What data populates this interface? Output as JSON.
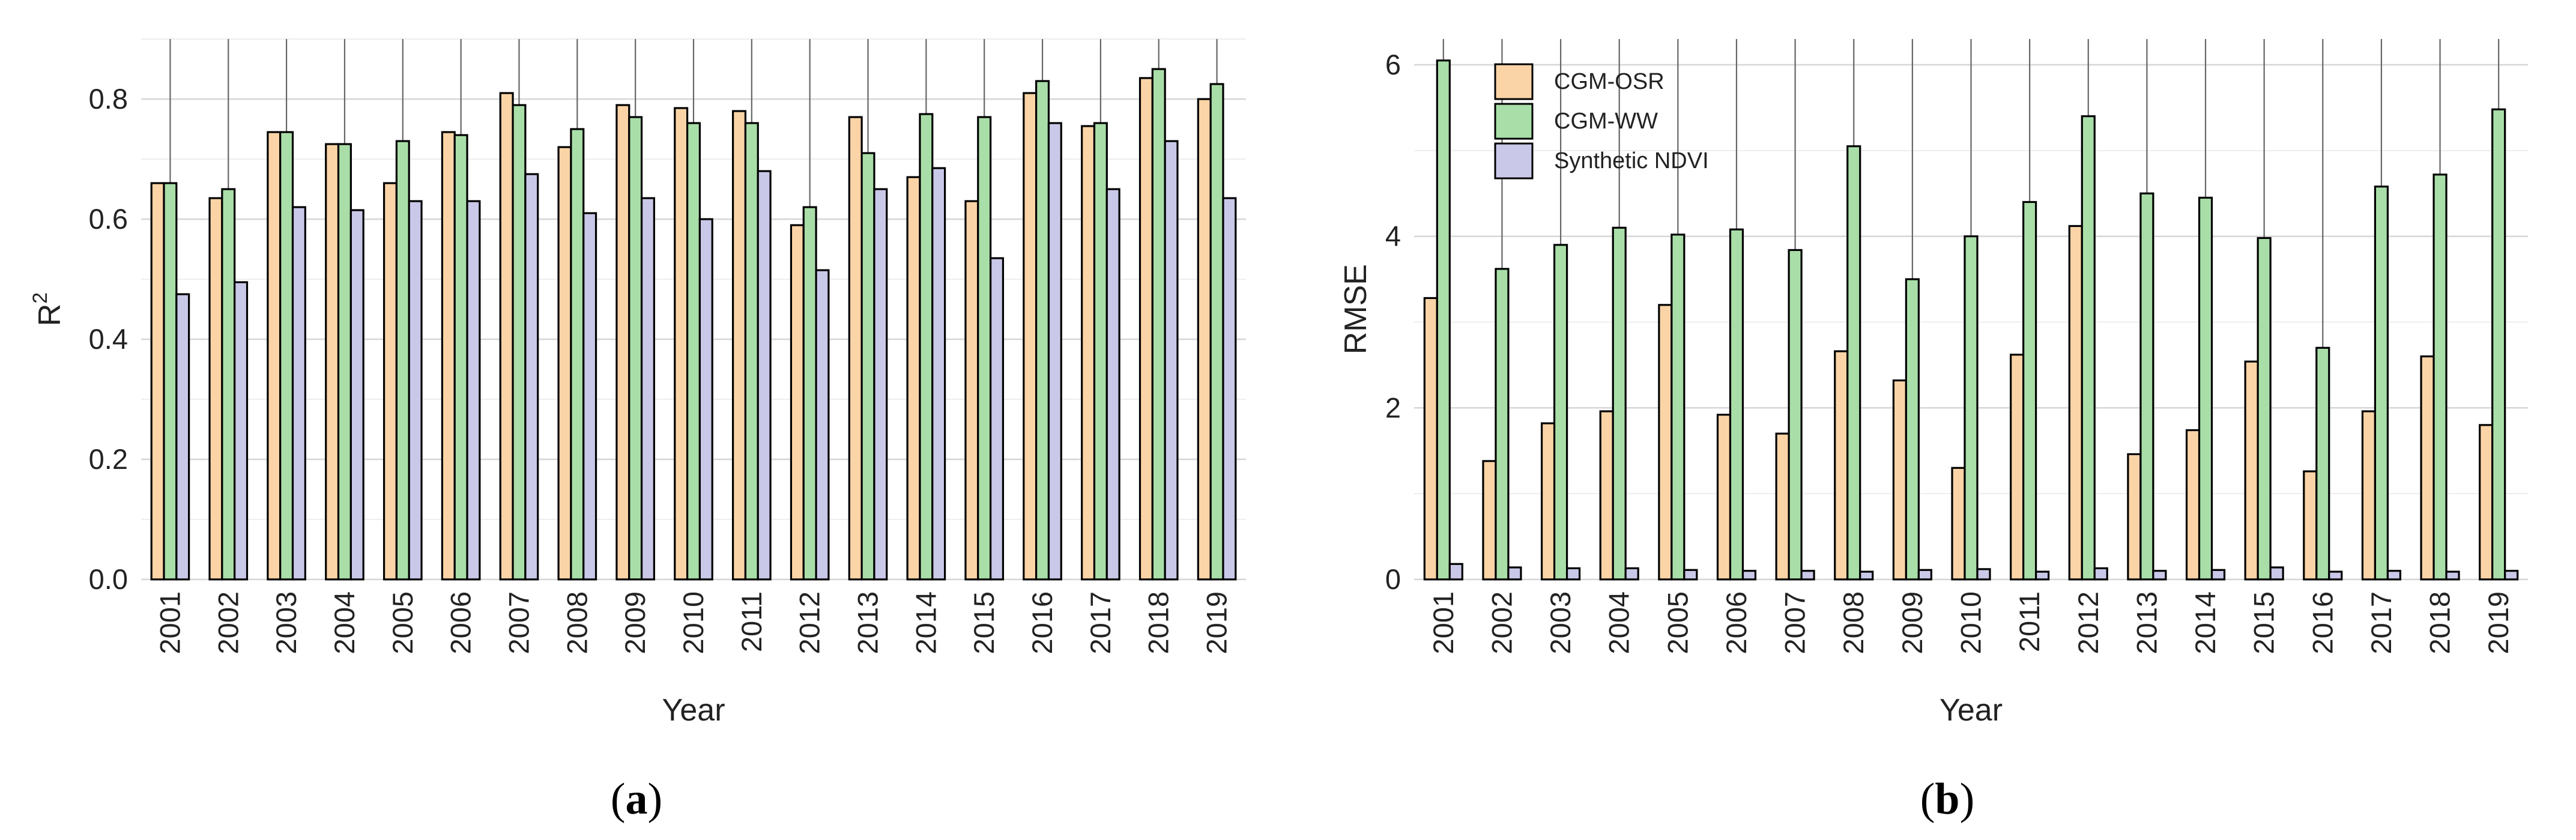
{
  "colors": {
    "cgm_osr": "#fad4a6",
    "cgm_ww": "#a9dea9",
    "synthetic_ndvi": "#c9c8e8"
  },
  "chart_data": [
    {
      "type": "bar",
      "panel": "(a)",
      "panel_letter": "a",
      "ylabel": "R",
      "ylabel_superscript": "2",
      "xlabel": "Year",
      "ylim": [
        0,
        0.9
      ],
      "yticks": [
        "0.0",
        "0.2",
        "0.4",
        "0.6",
        "0.8"
      ],
      "ytick_values": [
        0,
        0.2,
        0.4,
        0.6,
        0.8
      ],
      "categories": [
        "2001",
        "2002",
        "2003",
        "2004",
        "2005",
        "2006",
        "2007",
        "2008",
        "2009",
        "2010",
        "2011",
        "2012",
        "2013",
        "2014",
        "2015",
        "2016",
        "2017",
        "2018",
        "2019"
      ],
      "series": [
        {
          "name": "CGM-OSR",
          "values": [
            0.66,
            0.635,
            0.745,
            0.725,
            0.66,
            0.745,
            0.81,
            0.72,
            0.79,
            0.785,
            0.78,
            0.59,
            0.77,
            0.67,
            0.63,
            0.81,
            0.755,
            0.835,
            0.8
          ]
        },
        {
          "name": "CGM-WW",
          "values": [
            0.66,
            0.65,
            0.745,
            0.725,
            0.73,
            0.74,
            0.79,
            0.75,
            0.77,
            0.76,
            0.76,
            0.62,
            0.71,
            0.775,
            0.77,
            0.83,
            0.76,
            0.85,
            0.825
          ]
        },
        {
          "name": "Synthetic NDVI",
          "values": [
            0.475,
            0.495,
            0.62,
            0.615,
            0.63,
            0.63,
            0.675,
            0.61,
            0.635,
            0.6,
            0.68,
            0.515,
            0.65,
            0.685,
            0.535,
            0.76,
            0.65,
            0.73,
            0.635
          ]
        }
      ]
    },
    {
      "type": "bar",
      "panel": "(b)",
      "panel_letter": "b",
      "ylabel": "RMSE",
      "xlabel": "Year",
      "ylim": [
        0,
        6.3
      ],
      "yticks": [
        "0",
        "2",
        "4",
        "6"
      ],
      "ytick_values": [
        0,
        2,
        4,
        6
      ],
      "legend": [
        "CGM-OSR",
        "CGM-WW",
        "Synthetic NDVI"
      ],
      "legend_position": "top-left",
      "categories": [
        "2001",
        "2002",
        "2003",
        "2004",
        "2005",
        "2006",
        "2007",
        "2008",
        "2009",
        "2010",
        "2011",
        "2012",
        "2013",
        "2014",
        "2015",
        "2016",
        "2017",
        "2018",
        "2019"
      ],
      "series": [
        {
          "name": "CGM-OSR",
          "values": [
            3.28,
            1.38,
            1.82,
            1.96,
            3.2,
            1.92,
            1.7,
            2.66,
            2.32,
            1.3,
            2.62,
            4.12,
            1.46,
            1.74,
            2.54,
            1.26,
            1.96,
            2.6,
            1.8
          ]
        },
        {
          "name": "CGM-WW",
          "values": [
            6.05,
            3.62,
            3.9,
            4.1,
            4.02,
            4.08,
            3.84,
            5.05,
            3.5,
            4.0,
            4.4,
            5.4,
            4.5,
            4.45,
            3.98,
            2.7,
            4.58,
            4.72,
            5.48
          ]
        },
        {
          "name": "Synthetic NDVI",
          "values": [
            0.18,
            0.14,
            0.13,
            0.13,
            0.11,
            0.1,
            0.1,
            0.09,
            0.11,
            0.12,
            0.09,
            0.13,
            0.1,
            0.11,
            0.14,
            0.09,
            0.1,
            0.09,
            0.1
          ]
        }
      ]
    }
  ]
}
